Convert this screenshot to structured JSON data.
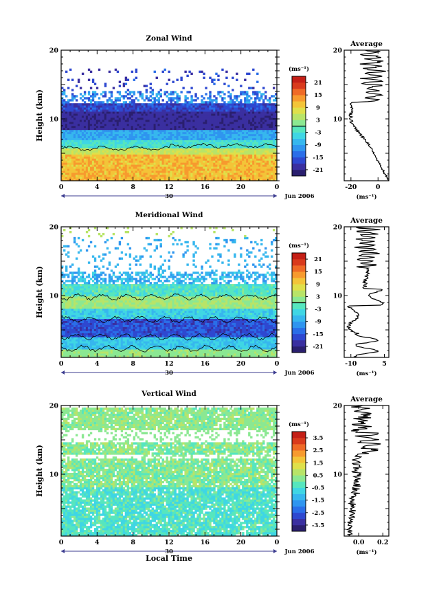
{
  "chart_data": [
    {
      "type": "heatmap",
      "title": "Zonal Wind",
      "ylabel": "Height (km)",
      "xlabel": "",
      "x_ticks": [
        "0",
        "4",
        "8",
        "12",
        "16",
        "20",
        "0"
      ],
      "y_ticks": [
        "10",
        "20"
      ],
      "xlim": [
        0,
        24
      ],
      "ylim": [
        1,
        20
      ],
      "date_day": "30",
      "date_month": "Jun 2006",
      "cbar_unit": "(ms⁻¹)",
      "cbar_ticks": [
        "21",
        "15",
        "9",
        "3",
        "-3",
        "-9",
        "-15",
        "-21"
      ],
      "cbar_range": [
        -24,
        24
      ],
      "cbar_colors": [
        "#2a1f6e",
        "#3a2fa0",
        "#2e48d0",
        "#2a6ee8",
        "#2f95ef",
        "#36b7ee",
        "#3fd6e4",
        "#56e6be",
        "#8be892",
        "#b8e468",
        "#dfe04a",
        "#f3c438",
        "#f79a2e",
        "#ef6a26",
        "#d93a1c",
        "#c41f16"
      ],
      "profile_title": "Average",
      "profile_xticks": [
        "-20",
        "0"
      ],
      "profile_xlim": [
        -25,
        8
      ],
      "profile_unit": "(ms⁻¹)",
      "zero_line_value": 0
    },
    {
      "type": "heatmap",
      "title": "Meridional Wind",
      "ylabel": "Height (km)",
      "xlabel": "",
      "x_ticks": [
        "0",
        "4",
        "8",
        "12",
        "16",
        "20",
        "0"
      ],
      "y_ticks": [
        "10",
        "20"
      ],
      "xlim": [
        0,
        24
      ],
      "ylim": [
        1,
        20
      ],
      "date_day": "30",
      "date_month": "Jun 2006",
      "cbar_unit": "(ms⁻¹)",
      "cbar_ticks": [
        "21",
        "15",
        "9",
        "3",
        "-3",
        "-9",
        "-15",
        "-21"
      ],
      "cbar_range": [
        -24,
        24
      ],
      "cbar_colors": [
        "#2a1f6e",
        "#3a2fa0",
        "#2e48d0",
        "#2a6ee8",
        "#2f95ef",
        "#36b7ee",
        "#3fd6e4",
        "#56e6be",
        "#8be892",
        "#b8e468",
        "#dfe04a",
        "#f3c438",
        "#f79a2e",
        "#ef6a26",
        "#d93a1c",
        "#c41f16"
      ],
      "profile_title": "Average",
      "profile_xticks": [
        "-10",
        "5"
      ],
      "profile_xlim": [
        -13,
        7
      ],
      "profile_unit": "(ms⁻¹)",
      "zero_line_value": 0
    },
    {
      "type": "heatmap",
      "title": "Vertical Wind",
      "ylabel": "Height (km)",
      "xlabel": "Local Time",
      "x_ticks": [
        "0",
        "4",
        "8",
        "12",
        "16",
        "20",
        "0"
      ],
      "y_ticks": [
        "10",
        "20"
      ],
      "xlim": [
        0,
        24
      ],
      "ylim": [
        1,
        20
      ],
      "date_day": "30",
      "date_month": "Jun 2006",
      "cbar_unit": "(ms⁻¹)",
      "cbar_ticks": [
        "3.5",
        "2.5",
        "1.5",
        "0.5",
        "-0.5",
        "-1.5",
        "-2.5",
        "-3.5"
      ],
      "cbar_range": [
        -4,
        4
      ],
      "cbar_colors": [
        "#2a1f6e",
        "#3a2fa0",
        "#2e48d0",
        "#2a6ee8",
        "#2f95ef",
        "#36b7ee",
        "#3fd6e4",
        "#56e6be",
        "#8be892",
        "#b8e468",
        "#dfe04a",
        "#f3c438",
        "#f79a2e",
        "#ef6a26",
        "#d93a1c",
        "#c41f16"
      ],
      "profile_title": "Average",
      "profile_xticks": [
        "0.0",
        "0.2"
      ],
      "profile_xlim": [
        -0.12,
        0.25
      ],
      "profile_unit": "(ms⁻¹)",
      "zero_line_value": null
    }
  ]
}
